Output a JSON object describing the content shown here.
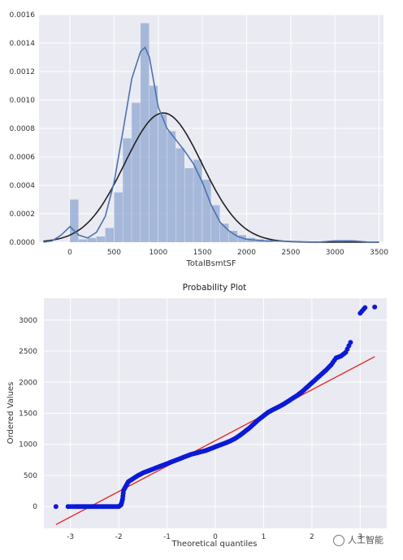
{
  "chart_data": [
    {
      "type": "histogram",
      "xlabel": "TotalBsmtSF",
      "ylabel": "",
      "title": "",
      "xlim": [
        -350,
        3550
      ],
      "ylim": [
        0,
        0.0016
      ],
      "xticks": [
        0,
        500,
        1000,
        1500,
        2000,
        2500,
        3000,
        3500
      ],
      "yticks": [
        0.0,
        0.0002,
        0.0004,
        0.0006,
        0.0008,
        0.001,
        0.0012,
        0.0014,
        0.0016
      ],
      "ytick_labels": [
        "0.0000",
        "0.0002",
        "0.0004",
        "0.0006",
        "0.0008",
        "0.0010",
        "0.0012",
        "0.0014",
        "0.0016"
      ],
      "grid": true,
      "bins": [
        {
          "x0": 0,
          "x1": 100,
          "density": 0.0003
        },
        {
          "x0": 100,
          "x1": 200,
          "density": 2e-05
        },
        {
          "x0": 200,
          "x1": 300,
          "density": 3e-05
        },
        {
          "x0": 300,
          "x1": 400,
          "density": 4e-05
        },
        {
          "x0": 400,
          "x1": 500,
          "density": 0.0001
        },
        {
          "x0": 500,
          "x1": 600,
          "density": 0.00035
        },
        {
          "x0": 600,
          "x1": 700,
          "density": 0.00073
        },
        {
          "x0": 700,
          "x1": 800,
          "density": 0.00098
        },
        {
          "x0": 800,
          "x1": 900,
          "density": 0.00154
        },
        {
          "x0": 900,
          "x1": 1000,
          "density": 0.0011
        },
        {
          "x0": 1000,
          "x1": 1100,
          "density": 0.0009
        },
        {
          "x0": 1100,
          "x1": 1200,
          "density": 0.00078
        },
        {
          "x0": 1200,
          "x1": 1300,
          "density": 0.00066
        },
        {
          "x0": 1300,
          "x1": 1400,
          "density": 0.00052
        },
        {
          "x0": 1400,
          "x1": 1500,
          "density": 0.00058
        },
        {
          "x0": 1500,
          "x1": 1600,
          "density": 0.00044
        },
        {
          "x0": 1600,
          "x1": 1700,
          "density": 0.00026
        },
        {
          "x0": 1700,
          "x1": 1800,
          "density": 0.00013
        },
        {
          "x0": 1800,
          "x1": 1900,
          "density": 8e-05
        },
        {
          "x0": 1900,
          "x1": 2000,
          "density": 5e-05
        },
        {
          "x0": 2000,
          "x1": 2100,
          "density": 3e-05
        },
        {
          "x0": 2100,
          "x1": 2200,
          "density": 2e-05
        },
        {
          "x0": 2200,
          "x1": 2300,
          "density": 1e-05
        },
        {
          "x0": 3100,
          "x1": 3200,
          "density": 1e-05
        }
      ],
      "kde": {
        "x": [
          -300,
          -200,
          -100,
          0,
          100,
          200,
          300,
          400,
          500,
          600,
          700,
          800,
          850,
          900,
          1000,
          1100,
          1200,
          1300,
          1400,
          1500,
          1600,
          1700,
          1800,
          1900,
          2000,
          2200,
          2500,
          2800,
          3000,
          3200,
          3400,
          3500
        ],
        "y": [
          0,
          1e-05,
          5e-05,
          0.00011,
          5e-05,
          3e-05,
          7e-05,
          0.00018,
          0.00042,
          0.00078,
          0.00115,
          0.00134,
          0.00137,
          0.0013,
          0.00095,
          0.0008,
          0.00072,
          0.00064,
          0.00055,
          0.00042,
          0.00026,
          0.00014,
          8e-05,
          4e-05,
          2e-05,
          1e-05,
          5e-06,
          0,
          1e-05,
          1e-05,
          0,
          0
        ]
      },
      "normal_fit": {
        "mean": 1057,
        "std": 439
      },
      "colors": {
        "bar": "#8fa7d1",
        "kde": "#4c72b0",
        "normal": "#222222",
        "background": "#eaeaf2"
      }
    },
    {
      "type": "scatter",
      "title": "Probability Plot",
      "xlabel": "Theoretical quantiles",
      "ylabel": "Ordered Values",
      "xlim": [
        -3.55,
        3.55
      ],
      "ylim": [
        -350,
        3350
      ],
      "xticks": [
        -3,
        -2,
        -1,
        0,
        1,
        2,
        3
      ],
      "yticks": [
        0,
        500,
        1000,
        1500,
        2000,
        2500,
        3000
      ],
      "grid": true,
      "fit_line": {
        "x": [
          -3.3,
          3.3
        ],
        "y": [
          -290,
          2410
        ]
      },
      "points": [
        [
          -3.3,
          0
        ],
        [
          -3.05,
          0
        ],
        [
          -2.9,
          0
        ],
        [
          -2.8,
          0
        ],
        [
          -2.7,
          0
        ],
        [
          -2.6,
          0
        ],
        [
          -2.5,
          0
        ],
        [
          -2.4,
          0
        ],
        [
          -2.3,
          0
        ],
        [
          -2.2,
          0
        ],
        [
          -2.1,
          0
        ],
        [
          -2.0,
          0
        ],
        [
          -1.95,
          30
        ],
        [
          -1.92,
          120
        ],
        [
          -1.9,
          260
        ],
        [
          -1.85,
          330
        ],
        [
          -1.8,
          400
        ],
        [
          -1.7,
          450
        ],
        [
          -1.6,
          500
        ],
        [
          -1.5,
          540
        ],
        [
          -1.4,
          570
        ],
        [
          -1.3,
          600
        ],
        [
          -1.2,
          630
        ],
        [
          -1.1,
          660
        ],
        [
          -1.0,
          690
        ],
        [
          -0.9,
          720
        ],
        [
          -0.8,
          750
        ],
        [
          -0.7,
          780
        ],
        [
          -0.6,
          810
        ],
        [
          -0.5,
          840
        ],
        [
          -0.4,
          860
        ],
        [
          -0.3,
          880
        ],
        [
          -0.2,
          900
        ],
        [
          -0.1,
          930
        ],
        [
          0.0,
          960
        ],
        [
          0.1,
          990
        ],
        [
          0.2,
          1020
        ],
        [
          0.3,
          1050
        ],
        [
          0.4,
          1090
        ],
        [
          0.5,
          1140
        ],
        [
          0.6,
          1200
        ],
        [
          0.7,
          1260
        ],
        [
          0.8,
          1330
        ],
        [
          0.9,
          1400
        ],
        [
          1.0,
          1460
        ],
        [
          1.1,
          1520
        ],
        [
          1.2,
          1560
        ],
        [
          1.3,
          1600
        ],
        [
          1.4,
          1640
        ],
        [
          1.5,
          1690
        ],
        [
          1.6,
          1740
        ],
        [
          1.7,
          1790
        ],
        [
          1.8,
          1850
        ],
        [
          1.9,
          1920
        ],
        [
          2.0,
          1990
        ],
        [
          2.1,
          2060
        ],
        [
          2.2,
          2130
        ],
        [
          2.3,
          2200
        ],
        [
          2.4,
          2280
        ],
        [
          2.5,
          2390
        ],
        [
          2.6,
          2420
        ],
        [
          2.7,
          2480
        ],
        [
          2.8,
          2640
        ],
        [
          3.0,
          3110
        ],
        [
          3.1,
          3200
        ],
        [
          3.3,
          3210
        ]
      ],
      "colors": {
        "points": "#0a1ad6",
        "line": "#e0322b",
        "background": "#eaeaf2"
      }
    }
  ],
  "watermark": {
    "text": "人工智能"
  }
}
